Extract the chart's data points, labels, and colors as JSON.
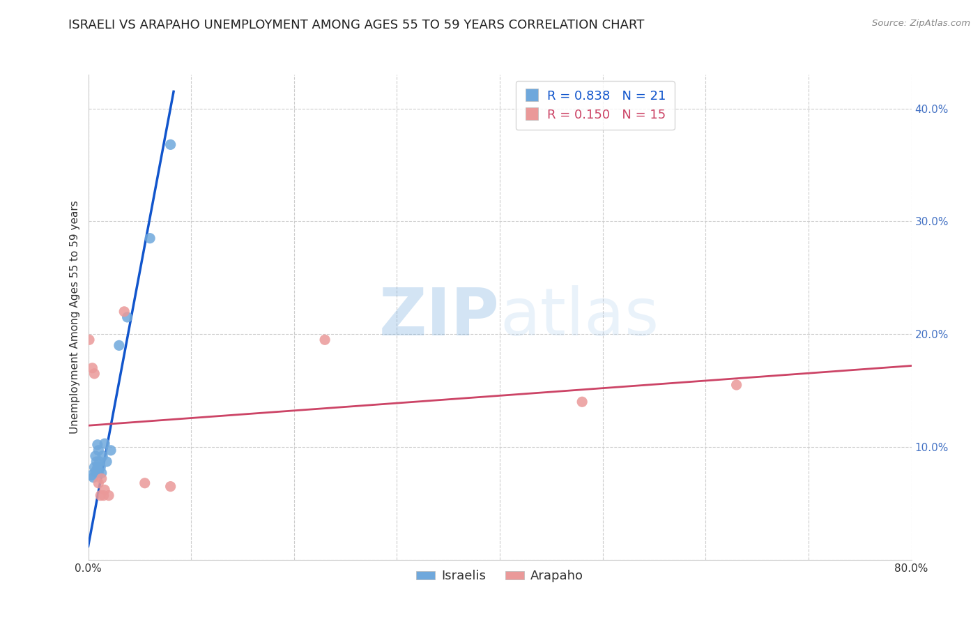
{
  "title": "ISRAELI VS ARAPAHO UNEMPLOYMENT AMONG AGES 55 TO 59 YEARS CORRELATION CHART",
  "source": "Source: ZipAtlas.com",
  "ylabel": "Unemployment Among Ages 55 to 59 years",
  "xlim": [
    0.0,
    0.8
  ],
  "ylim": [
    0.0,
    0.43
  ],
  "xticks": [
    0.0,
    0.1,
    0.2,
    0.3,
    0.4,
    0.5,
    0.6,
    0.7,
    0.8
  ],
  "ytick_positions": [
    0.0,
    0.1,
    0.2,
    0.3,
    0.4
  ],
  "israeli_r": "0.838",
  "israeli_n": "21",
  "arapaho_r": "0.150",
  "arapaho_n": "15",
  "israeli_color": "#6fa8dc",
  "arapaho_color": "#ea9999",
  "trendline_israeli_color": "#1155cc",
  "trendline_arapaho_color": "#cc4466",
  "watermark_zip": "ZIP",
  "watermark_atlas": "atlas",
  "israeli_points": [
    [
      0.003,
      0.075
    ],
    [
      0.005,
      0.073
    ],
    [
      0.006,
      0.082
    ],
    [
      0.007,
      0.078
    ],
    [
      0.007,
      0.092
    ],
    [
      0.008,
      0.087
    ],
    [
      0.009,
      0.102
    ],
    [
      0.009,
      0.082
    ],
    [
      0.01,
      0.077
    ],
    [
      0.01,
      0.097
    ],
    [
      0.011,
      0.087
    ],
    [
      0.012,
      0.082
    ],
    [
      0.013,
      0.077
    ],
    [
      0.014,
      0.092
    ],
    [
      0.016,
      0.103
    ],
    [
      0.018,
      0.087
    ],
    [
      0.022,
      0.097
    ],
    [
      0.03,
      0.19
    ],
    [
      0.038,
      0.215
    ],
    [
      0.06,
      0.285
    ],
    [
      0.08,
      0.368
    ]
  ],
  "arapaho_points": [
    [
      0.001,
      0.195
    ],
    [
      0.004,
      0.17
    ],
    [
      0.006,
      0.165
    ],
    [
      0.01,
      0.068
    ],
    [
      0.012,
      0.057
    ],
    [
      0.013,
      0.072
    ],
    [
      0.015,
      0.057
    ],
    [
      0.016,
      0.062
    ],
    [
      0.02,
      0.057
    ],
    [
      0.035,
      0.22
    ],
    [
      0.055,
      0.068
    ],
    [
      0.08,
      0.065
    ],
    [
      0.23,
      0.195
    ],
    [
      0.48,
      0.14
    ],
    [
      0.63,
      0.155
    ]
  ],
  "israeli_trend_x": [
    0.0,
    0.083
  ],
  "israeli_trend_y": [
    0.012,
    0.415
  ],
  "arapaho_trend_x": [
    0.0,
    0.8
  ],
  "arapaho_trend_y": [
    0.119,
    0.172
  ],
  "background_color": "#ffffff",
  "grid_color": "#cccccc",
  "title_fontsize": 13,
  "label_fontsize": 11,
  "tick_fontsize": 11,
  "legend_fontsize": 13
}
